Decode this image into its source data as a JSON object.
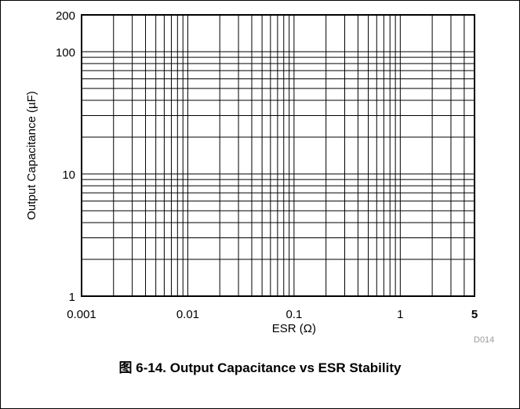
{
  "chart_data": {
    "type": "line",
    "title": "",
    "xlabel": "ESR (Ω)",
    "ylabel": "Output Capacitance (µF)",
    "xscale": "log",
    "yscale": "log",
    "xlim": [
      0.001,
      5
    ],
    "ylim": [
      1,
      200
    ],
    "x_ticks": [
      0.001,
      0.01,
      0.1,
      1,
      5
    ],
    "x_tick_labels": [
      "0.001",
      "0.01",
      "0.1",
      "1",
      "5"
    ],
    "y_ticks": [
      1,
      10,
      100,
      200
    ],
    "y_tick_labels": [
      "1",
      "10",
      "100",
      "200"
    ],
    "grid": true,
    "series": []
  },
  "figure": {
    "code": "D014",
    "caption": "图 6-14. Output Capacitance vs ESR Stability"
  }
}
